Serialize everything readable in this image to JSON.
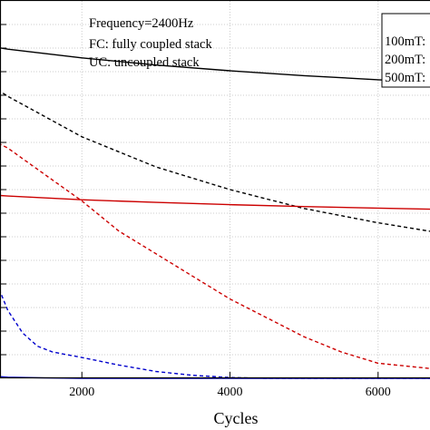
{
  "chart_data": {
    "type": "line",
    "xlabel": "Cycles",
    "ylabel": "",
    "xlim": [
      0,
      6750
    ],
    "ylim": [
      0,
      1
    ],
    "x_ticks": [
      2000,
      4000,
      6000
    ],
    "x_tick_labels": [
      "2000",
      "4000",
      "6000"
    ],
    "y_tick_count": 16,
    "grid": true,
    "annotations": [
      "Frequency=2400Hz",
      "FC: fully coupled stack",
      "UC: uncoupled stack"
    ],
    "legend": {
      "placement": "top-right",
      "entries": [
        "100mT:",
        "200mT:",
        "500mT:"
      ]
    },
    "series": [
      {
        "color": "#000000",
        "style": "solid",
        "x": [
          0,
          500,
          1000,
          2000,
          3000,
          4000,
          5000,
          6000,
          6750
        ],
        "y": [
          0.907,
          0.888,
          0.872,
          0.849,
          0.83,
          0.815,
          0.802,
          0.791,
          0.784
        ]
      },
      {
        "color": "#000000",
        "style": "dashed",
        "x": [
          0,
          500,
          1000,
          2000,
          3000,
          4000,
          5000,
          6000,
          6750
        ],
        "y": [
          0.875,
          0.812,
          0.747,
          0.64,
          0.56,
          0.5,
          0.45,
          0.412,
          0.388
        ]
      },
      {
        "color": "#cc0000",
        "style": "solid",
        "x": [
          0,
          500,
          1000,
          2000,
          3000,
          4000,
          5000,
          6000,
          6750
        ],
        "y": [
          0.5,
          0.49,
          0.483,
          0.473,
          0.466,
          0.46,
          0.455,
          0.451,
          0.448
        ]
      },
      {
        "color": "#cc0000",
        "style": "dashed",
        "x": [
          0,
          500,
          1000,
          1500,
          2000,
          2500,
          3000,
          3500,
          4000,
          4500,
          5000,
          5500,
          6000,
          6750
        ],
        "y": [
          0.73,
          0.66,
          0.61,
          0.54,
          0.47,
          0.39,
          0.33,
          0.27,
          0.21,
          0.16,
          0.11,
          0.07,
          0.04,
          0.025
        ]
      },
      {
        "color": "#0000cc",
        "style": "dashed",
        "x": [
          0,
          250,
          500,
          750,
          1000,
          1200,
          1400,
          1600,
          2000,
          2500,
          3000,
          3500,
          4000,
          4500,
          5000,
          5500,
          6000,
          6750
        ],
        "y": [
          0.54,
          0.49,
          0.41,
          0.3,
          0.18,
          0.12,
          0.085,
          0.07,
          0.055,
          0.035,
          0.018,
          0.008,
          0.002,
          0,
          0,
          0,
          0,
          0
        ]
      },
      {
        "color": "#0000cc",
        "style": "solid",
        "x": [
          0,
          500,
          1000,
          1500,
          2000,
          2500,
          3000,
          3500,
          4000,
          5000,
          6000,
          6750
        ],
        "y": [
          0.023,
          0.01,
          0.003,
          0.001,
          0,
          0,
          0,
          0,
          0,
          0,
          0,
          0
        ]
      }
    ]
  }
}
